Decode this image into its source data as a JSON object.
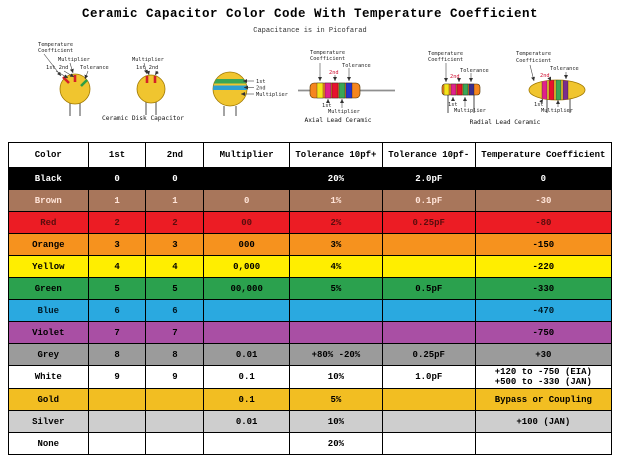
{
  "title": "Ceramic Capacitor Color Code With Temperature Coefficient",
  "subtitle": "Capacitance is in Picofarad",
  "diagrams": {
    "labels": {
      "temperature": "Temperature",
      "coefficient": "Coefficient",
      "multiplier": "Multiplier",
      "first_second": "1st 2nd",
      "tolerance": "Tolerance",
      "first": "1st",
      "second": "2nd"
    },
    "captions": {
      "disk": "Ceramic Disk Capacitor",
      "axial": "Axial Lead Ceramic",
      "radial": "Radial Lead Ceramic"
    }
  },
  "chart_data": {
    "type": "table",
    "title": "Ceramic Capacitor Color Code With Temperature Coefficient",
    "columns": [
      "Color",
      "1st",
      "2nd",
      "Multiplier",
      "Tolerance 10pf+",
      "Tolerance 10pf-",
      "Temperature Coefficient"
    ],
    "column_keys": [
      "color",
      "first-digit",
      "second-digit",
      "multiplier",
      "tolerance-over-10pf",
      "tolerance-under-10pf",
      "temperature-coefficient"
    ],
    "rows": [
      [
        "Black",
        "0",
        "0",
        "",
        "20%",
        "2.0pF",
        "0"
      ],
      [
        "Brown",
        "1",
        "1",
        "0",
        "1%",
        "0.1pF",
        "-30"
      ],
      [
        "Red",
        "2",
        "2",
        "00",
        "2%",
        "0.25pF",
        "-80"
      ],
      [
        "Orange",
        "3",
        "3",
        "000",
        "3%",
        "",
        "-150"
      ],
      [
        "Yellow",
        "4",
        "4",
        "0,000",
        "4%",
        "",
        "-220"
      ],
      [
        "Green",
        "5",
        "5",
        "00,000",
        "5%",
        "0.5pF",
        "-330"
      ],
      [
        "Blue",
        "6",
        "6",
        "",
        "",
        "",
        "-470"
      ],
      [
        "Violet",
        "7",
        "7",
        "",
        "",
        "",
        "-750"
      ],
      [
        "Grey",
        "8",
        "8",
        "0.01",
        "+80% -20%",
        "0.25pF",
        "+30"
      ],
      [
        "White",
        "9",
        "9",
        "0.1",
        "10%",
        "1.0pF",
        "+120 to -750 (EIA)\n+500 to -330 (JAN)"
      ],
      [
        "Gold",
        "",
        "",
        "0.1",
        "5%",
        "",
        "Bypass or Coupling"
      ],
      [
        "Silver",
        "",
        "",
        "0.01",
        "10%",
        "",
        "+100 (JAN)"
      ],
      [
        "None",
        "",
        "",
        "",
        "20%",
        "",
        ""
      ]
    ],
    "row_colors": [
      "#000000",
      "#a8765b",
      "#ec1c24",
      "#f6921e",
      "#ffee00",
      "#2ba14e",
      "#2aa9e0",
      "#a94fa4",
      "#9b9b9b",
      "#ffffff",
      "#f2be22",
      "#cecece",
      "#ffffff"
    ],
    "row_text_colors": [
      "#ffffff",
      "#ffe4d8",
      "#5a0d0d",
      "#000000",
      "#000000",
      "#000000",
      "#001a26",
      "#000000",
      "#000000",
      "#000000",
      "#000000",
      "#000000",
      "#000000"
    ]
  }
}
